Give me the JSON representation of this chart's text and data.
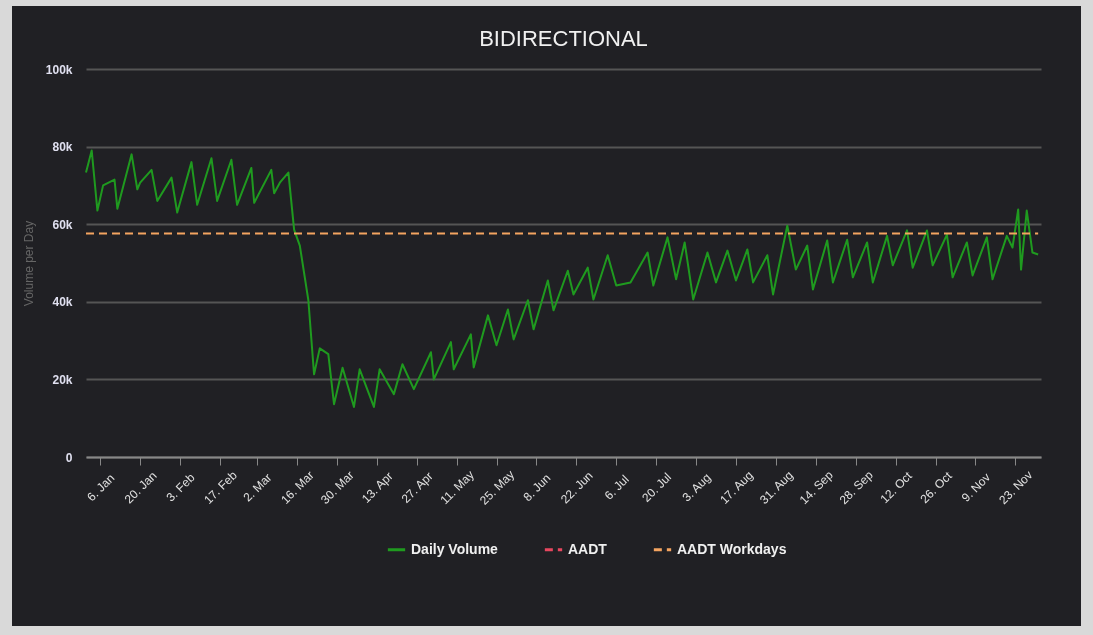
{
  "chart_data": {
    "type": "line",
    "title": "BIDIRECTIONAL",
    "ylabel": "Volume per Day",
    "xlim": [
      "--01-01",
      "--12-02"
    ],
    "ylim": [
      0,
      100000
    ],
    "xticks": [
      {
        "value": "--01-06",
        "label": "6. Jan"
      },
      {
        "value": "--01-20",
        "label": "20. Jan"
      },
      {
        "value": "--02-03",
        "label": "3. Feb"
      },
      {
        "value": "--02-17",
        "label": "17. Feb"
      },
      {
        "value": "--03-02",
        "label": "2. Mar"
      },
      {
        "value": "--03-16",
        "label": "16. Mar"
      },
      {
        "value": "--03-30",
        "label": "30. Mar"
      },
      {
        "value": "--04-13",
        "label": "13. Apr"
      },
      {
        "value": "--04-27",
        "label": "27. Apr"
      },
      {
        "value": "--05-11",
        "label": "11. May"
      },
      {
        "value": "--05-25",
        "label": "25. May"
      },
      {
        "value": "--06-08",
        "label": "8. Jun"
      },
      {
        "value": "--06-22",
        "label": "22. Jun"
      },
      {
        "value": "--07-06",
        "label": "6. Jul"
      },
      {
        "value": "--07-20",
        "label": "20. Jul"
      },
      {
        "value": "--08-03",
        "label": "3. Aug"
      },
      {
        "value": "--08-17",
        "label": "17. Aug"
      },
      {
        "value": "--08-31",
        "label": "31. Aug"
      },
      {
        "value": "--09-14",
        "label": "14. Sep"
      },
      {
        "value": "--09-28",
        "label": "28. Sep"
      },
      {
        "value": "--10-12",
        "label": "12. Oct"
      },
      {
        "value": "--10-26",
        "label": "26. Oct"
      },
      {
        "value": "--11-09",
        "label": "9. Nov"
      },
      {
        "value": "--11-23",
        "label": "23. Nov"
      }
    ],
    "yticks": [
      {
        "value": 0,
        "label": "0"
      },
      {
        "value": 20000,
        "label": "20k"
      },
      {
        "value": 40000,
        "label": "40k"
      },
      {
        "value": 60000,
        "label": "60k"
      },
      {
        "value": 80000,
        "label": "80k"
      },
      {
        "value": 100000,
        "label": "100k"
      }
    ],
    "grid": "y",
    "legend": "bottom",
    "marker": "none",
    "series": [
      {
        "name": "Daily Volume",
        "color": "#1f9a1f",
        "line_style": "solid",
        "x": [
          "--01-01",
          "--01-03",
          "--01-05",
          "--01-07",
          "--01-11",
          "--01-12",
          "--01-17",
          "--01-19",
          "--01-20",
          "--01-24",
          "--01-26",
          "--01-31",
          "--02-02",
          "--02-07",
          "--02-09",
          "--02-14",
          "--02-16",
          "--02-21",
          "--02-23",
          "--02-28",
          "--03-01",
          "--03-07",
          "--03-08",
          "--03-10",
          "--03-13",
          "--03-15",
          "--03-17",
          "--03-20",
          "--03-22",
          "--03-24",
          "--03-27",
          "--03-29",
          "--04-01",
          "--04-05",
          "--04-07",
          "--04-12",
          "--04-14",
          "--04-19",
          "--04-22",
          "--04-26",
          "--05-02",
          "--05-03",
          "--05-09",
          "--05-10",
          "--05-16",
          "--05-17",
          "--05-22",
          "--05-25",
          "--05-29",
          "--05-31",
          "--06-05",
          "--06-07",
          "--06-12",
          "--06-14",
          "--06-19",
          "--06-21",
          "--06-26",
          "--06-28",
          "--07-03",
          "--07-06",
          "--07-11",
          "--07-17",
          "--07-19",
          "--07-24",
          "--07-27",
          "--07-30",
          "--08-02",
          "--08-07",
          "--08-10",
          "--08-14",
          "--08-17",
          "--08-21",
          "--08-23",
          "--08-28",
          "--08-30",
          "--09-04",
          "--09-07",
          "--09-11",
          "--09-13",
          "--09-18",
          "--09-20",
          "--09-25",
          "--09-27",
          "--10-02",
          "--10-04",
          "--10-09",
          "--10-11",
          "--10-16",
          "--10-18",
          "--10-23",
          "--10-25",
          "--10-30",
          "--11-01",
          "--11-06",
          "--11-08",
          "--11-13",
          "--11-15",
          "--11-20",
          "--11-22",
          "--11-24",
          "--11-25",
          "--11-27",
          "--11-29",
          "--12-01"
        ],
        "values": [
          73300,
          79000,
          63500,
          70000,
          71500,
          64000,
          78000,
          69000,
          70700,
          74000,
          66000,
          72000,
          63000,
          76000,
          65000,
          77000,
          66000,
          76600,
          65000,
          74500,
          65500,
          74000,
          68000,
          70700,
          73300,
          58600,
          54500,
          40400,
          21300,
          28000,
          26500,
          13600,
          23000,
          12900,
          22600,
          12900,
          22600,
          16200,
          23900,
          17500,
          27000,
          20000,
          29600,
          22600,
          31600,
          23100,
          36500,
          28800,
          38000,
          30300,
          40400,
          32900,
          45500,
          37800,
          48000,
          41900,
          48800,
          40600,
          52000,
          44200,
          45000,
          52700,
          44200,
          56600,
          45800,
          55300,
          40600,
          52700,
          45000,
          53200,
          45500,
          53500,
          45000,
          52000,
          41900,
          59600,
          48300,
          54500,
          43200,
          55800,
          45000,
          56000,
          46300,
          55300,
          45000,
          57000,
          49400,
          58400,
          48800,
          58400,
          49400,
          57300,
          46300,
          55300,
          46800,
          56600,
          45800,
          57000,
          54000,
          63800,
          48300,
          63500,
          52700,
          52200
        ]
      },
      {
        "name": "AADT",
        "color": "#e8475f",
        "line_style": "dashed"
      },
      {
        "name": "AADT Workdays",
        "color": "#f4a460",
        "line_style": "dashed",
        "x": [
          "--01-01",
          "--12-01"
        ],
        "values": [
          57600,
          57600
        ]
      }
    ]
  }
}
